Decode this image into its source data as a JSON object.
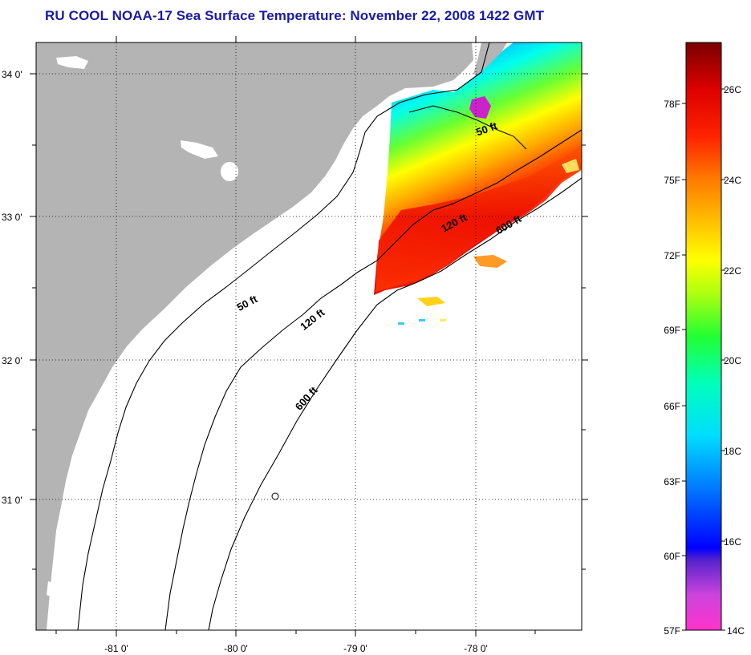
{
  "title": "RU COOL  NOAA-17  Sea Surface Temperature:  November 22, 2008 1422 GMT",
  "axes": {
    "lat_labels": [
      "34 0'",
      "33 0'",
      "32 0'",
      "31 0'"
    ],
    "lon_labels": [
      "-81 0'",
      "-80 0'",
      "-79 0'",
      "-78 0'"
    ]
  },
  "depth_contours": [
    "50 ft",
    "120 ft",
    "600 ft"
  ],
  "colors": {
    "land": "#b4b4b4",
    "contour": "#000000",
    "gridline": "#000000",
    "title": "#1a1aa8"
  },
  "colorbar": {
    "fahrenheit_labels": [
      "78F",
      "75F",
      "72F",
      "69F",
      "66F",
      "63F",
      "60F",
      "57F"
    ],
    "celsius_labels": [
      "26C",
      "24C",
      "22C",
      "20C",
      "18C",
      "16C",
      "14C"
    ]
  }
}
